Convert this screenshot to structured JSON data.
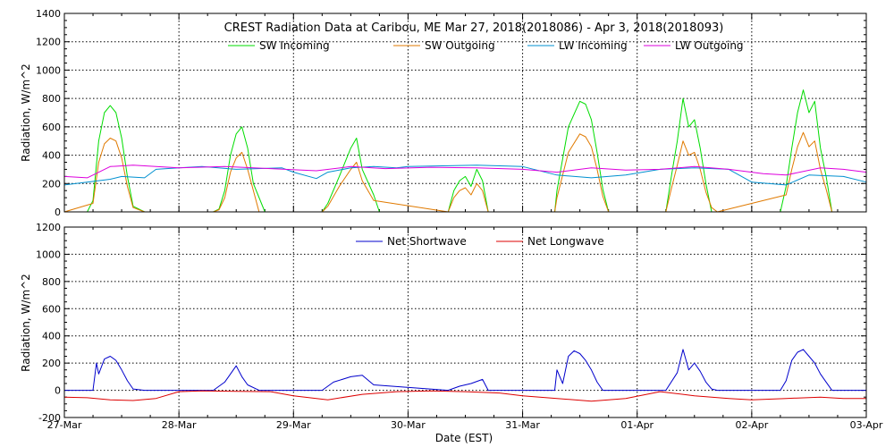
{
  "chart_data": [
    {
      "type": "line",
      "title": "CREST Radiation Data at Caribou, ME   Mar 27, 2018(2018086) - Apr  3, 2018(2018093)",
      "xlabel": "",
      "ylabel": "Radiation,  W/m^2",
      "x_range": [
        "2018-03-27",
        "2018-04-03"
      ],
      "ylim": [
        0,
        1400
      ],
      "yticks": [
        0,
        200,
        400,
        600,
        800,
        1000,
        1200,
        1400
      ],
      "grid": true,
      "legend": "top-center",
      "series": [
        {
          "name": "SW Incoming",
          "color": "#00dd00",
          "x": [
            0.0,
            0.2,
            0.25,
            0.3,
            0.35,
            0.4,
            0.45,
            0.5,
            0.55,
            0.6,
            0.7,
            0.75,
            1.0,
            1.3,
            1.35,
            1.4,
            1.45,
            1.5,
            1.55,
            1.6,
            1.65,
            1.75,
            2.0,
            2.25,
            2.3,
            2.4,
            2.5,
            2.55,
            2.6,
            2.7,
            2.75,
            3.0,
            3.35,
            3.4,
            3.45,
            3.5,
            3.55,
            3.6,
            3.65,
            3.7,
            4.0,
            4.28,
            4.3,
            4.4,
            4.5,
            4.55,
            4.6,
            4.65,
            4.7,
            4.75,
            5.0,
            5.25,
            5.3,
            5.35,
            5.4,
            5.45,
            5.5,
            5.55,
            5.6,
            5.65,
            5.7,
            5.75,
            5.8,
            6.0,
            6.25,
            6.3,
            6.35,
            6.4,
            6.45,
            6.5,
            6.55,
            6.6,
            6.65,
            6.7,
            6.75,
            6.8,
            7.0
          ],
          "values": [
            0,
            0,
            80,
            500,
            700,
            750,
            700,
            520,
            250,
            40,
            0,
            0,
            0,
            0,
            20,
            150,
            400,
            550,
            600,
            450,
            200,
            0,
            0,
            0,
            60,
            250,
            450,
            520,
            300,
            120,
            0,
            0,
            0,
            150,
            220,
            250,
            180,
            300,
            220,
            0,
            0,
            0,
            150,
            600,
            780,
            760,
            650,
            420,
            160,
            0,
            0,
            0,
            260,
            500,
            800,
            600,
            650,
            450,
            200,
            0,
            0,
            0,
            0,
            0,
            0,
            180,
            450,
            700,
            860,
            700,
            780,
            450,
            250,
            0,
            0,
            0,
            0
          ]
        },
        {
          "name": "SW Outgoing",
          "color": "#e07a00",
          "x": [
            0.0,
            0.25,
            0.3,
            0.35,
            0.4,
            0.45,
            0.5,
            0.55,
            0.6,
            0.7,
            1.3,
            1.35,
            1.4,
            1.45,
            1.5,
            1.55,
            1.6,
            1.7,
            2.25,
            2.3,
            2.4,
            2.5,
            2.55,
            2.6,
            2.7,
            3.35,
            3.4,
            3.45,
            3.5,
            3.55,
            3.6,
            3.65,
            3.7,
            4.28,
            4.3,
            4.4,
            4.5,
            4.55,
            4.6,
            4.65,
            4.7,
            4.75,
            5.25,
            5.3,
            5.35,
            5.4,
            5.45,
            5.5,
            5.55,
            5.6,
            5.65,
            5.7,
            6.3,
            6.35,
            6.4,
            6.45,
            6.5,
            6.55,
            6.6,
            6.65,
            6.7,
            7.0
          ],
          "values": [
            0,
            60,
            350,
            480,
            520,
            500,
            380,
            180,
            30,
            0,
            0,
            15,
            100,
            280,
            380,
            420,
            300,
            0,
            0,
            40,
            180,
            300,
            350,
            220,
            80,
            0,
            100,
            150,
            170,
            120,
            200,
            150,
            0,
            0,
            100,
            420,
            550,
            530,
            460,
            300,
            110,
            0,
            0,
            170,
            330,
            500,
            400,
            420,
            300,
            140,
            30,
            0,
            120,
            300,
            460,
            560,
            460,
            500,
            300,
            160,
            0,
            0
          ]
        },
        {
          "name": "LW Incoming",
          "color": "#0090d0",
          "x": [
            0.0,
            0.3,
            0.4,
            0.5,
            0.7,
            0.8,
            1.0,
            1.2,
            1.5,
            1.9,
            2.0,
            2.2,
            2.3,
            2.5,
            2.7,
            2.9,
            3.0,
            3.3,
            3.6,
            4.0,
            4.3,
            4.6,
            4.9,
            5.2,
            5.5,
            5.8,
            6.0,
            6.3,
            6.5,
            6.8,
            7.0
          ],
          "values": [
            190,
            220,
            230,
            250,
            240,
            300,
            310,
            320,
            300,
            310,
            280,
            235,
            280,
            310,
            320,
            310,
            320,
            325,
            330,
            320,
            260,
            240,
            260,
            300,
            310,
            300,
            210,
            190,
            260,
            250,
            210
          ]
        },
        {
          "name": "LW Outgoing",
          "color": "#dd00dd",
          "x": [
            0.0,
            0.2,
            0.4,
            0.6,
            0.8,
            1.0,
            1.4,
            1.8,
            2.2,
            2.5,
            2.8,
            3.2,
            3.6,
            4.0,
            4.3,
            4.6,
            4.9,
            5.2,
            5.5,
            5.8,
            6.1,
            6.3,
            6.6,
            6.8,
            7.0
          ],
          "values": [
            250,
            240,
            320,
            330,
            320,
            310,
            320,
            305,
            290,
            320,
            305,
            315,
            310,
            300,
            280,
            310,
            295,
            300,
            320,
            300,
            270,
            260,
            310,
            300,
            280
          ]
        }
      ]
    },
    {
      "type": "line",
      "title": "",
      "xlabel": "Date (EST)",
      "ylabel": "Radiation,  W/m^2",
      "x_range": [
        "2018-03-27",
        "2018-04-03"
      ],
      "ylim": [
        -200,
        1200
      ],
      "yticks": [
        -200,
        0,
        200,
        400,
        600,
        800,
        1000,
        1200
      ],
      "xtick_labels": [
        "27-Mar",
        "28-Mar",
        "29-Mar",
        "30-Mar",
        "31-Mar",
        "01-Apr",
        "02-Apr",
        "03-Apr"
      ],
      "grid": true,
      "legend": "top-center",
      "series": [
        {
          "name": "Net Shortwave",
          "color": "#0000cc",
          "x": [
            0.0,
            0.25,
            0.28,
            0.3,
            0.35,
            0.4,
            0.45,
            0.5,
            0.55,
            0.6,
            0.7,
            1.3,
            1.4,
            1.45,
            1.5,
            1.55,
            1.6,
            1.7,
            2.25,
            2.35,
            2.5,
            2.6,
            2.7,
            3.35,
            3.45,
            3.55,
            3.65,
            3.7,
            4.28,
            4.3,
            4.35,
            4.4,
            4.45,
            4.5,
            4.55,
            4.6,
            4.65,
            4.7,
            5.25,
            5.35,
            5.4,
            5.45,
            5.5,
            5.55,
            5.6,
            5.65,
            5.7,
            6.25,
            6.3,
            6.35,
            6.4,
            6.45,
            6.5,
            6.55,
            6.6,
            6.65,
            6.7,
            7.0
          ],
          "values": [
            0,
            0,
            200,
            120,
            230,
            250,
            220,
            150,
            70,
            10,
            0,
            0,
            60,
            120,
            180,
            100,
            40,
            0,
            0,
            60,
            100,
            110,
            40,
            0,
            30,
            50,
            80,
            0,
            0,
            150,
            50,
            250,
            290,
            270,
            220,
            150,
            60,
            0,
            0,
            130,
            300,
            150,
            200,
            140,
            60,
            10,
            0,
            0,
            70,
            220,
            280,
            300,
            250,
            200,
            120,
            60,
            0,
            0
          ]
        },
        {
          "name": "Net Longwave",
          "color": "#dd0000",
          "x": [
            0.0,
            0.2,
            0.4,
            0.6,
            0.8,
            1.0,
            1.2,
            1.5,
            1.8,
            2.0,
            2.3,
            2.6,
            2.9,
            3.2,
            3.5,
            3.8,
            4.0,
            4.3,
            4.6,
            4.9,
            5.2,
            5.5,
            5.8,
            6.0,
            6.3,
            6.6,
            6.8,
            7.0
          ],
          "values": [
            -50,
            -55,
            -70,
            -75,
            -60,
            -10,
            -5,
            -8,
            -10,
            -40,
            -70,
            -30,
            -10,
            -5,
            -10,
            -20,
            -40,
            -60,
            -80,
            -60,
            -10,
            -40,
            -60,
            -70,
            -60,
            -50,
            -60,
            -60
          ]
        }
      ]
    }
  ]
}
